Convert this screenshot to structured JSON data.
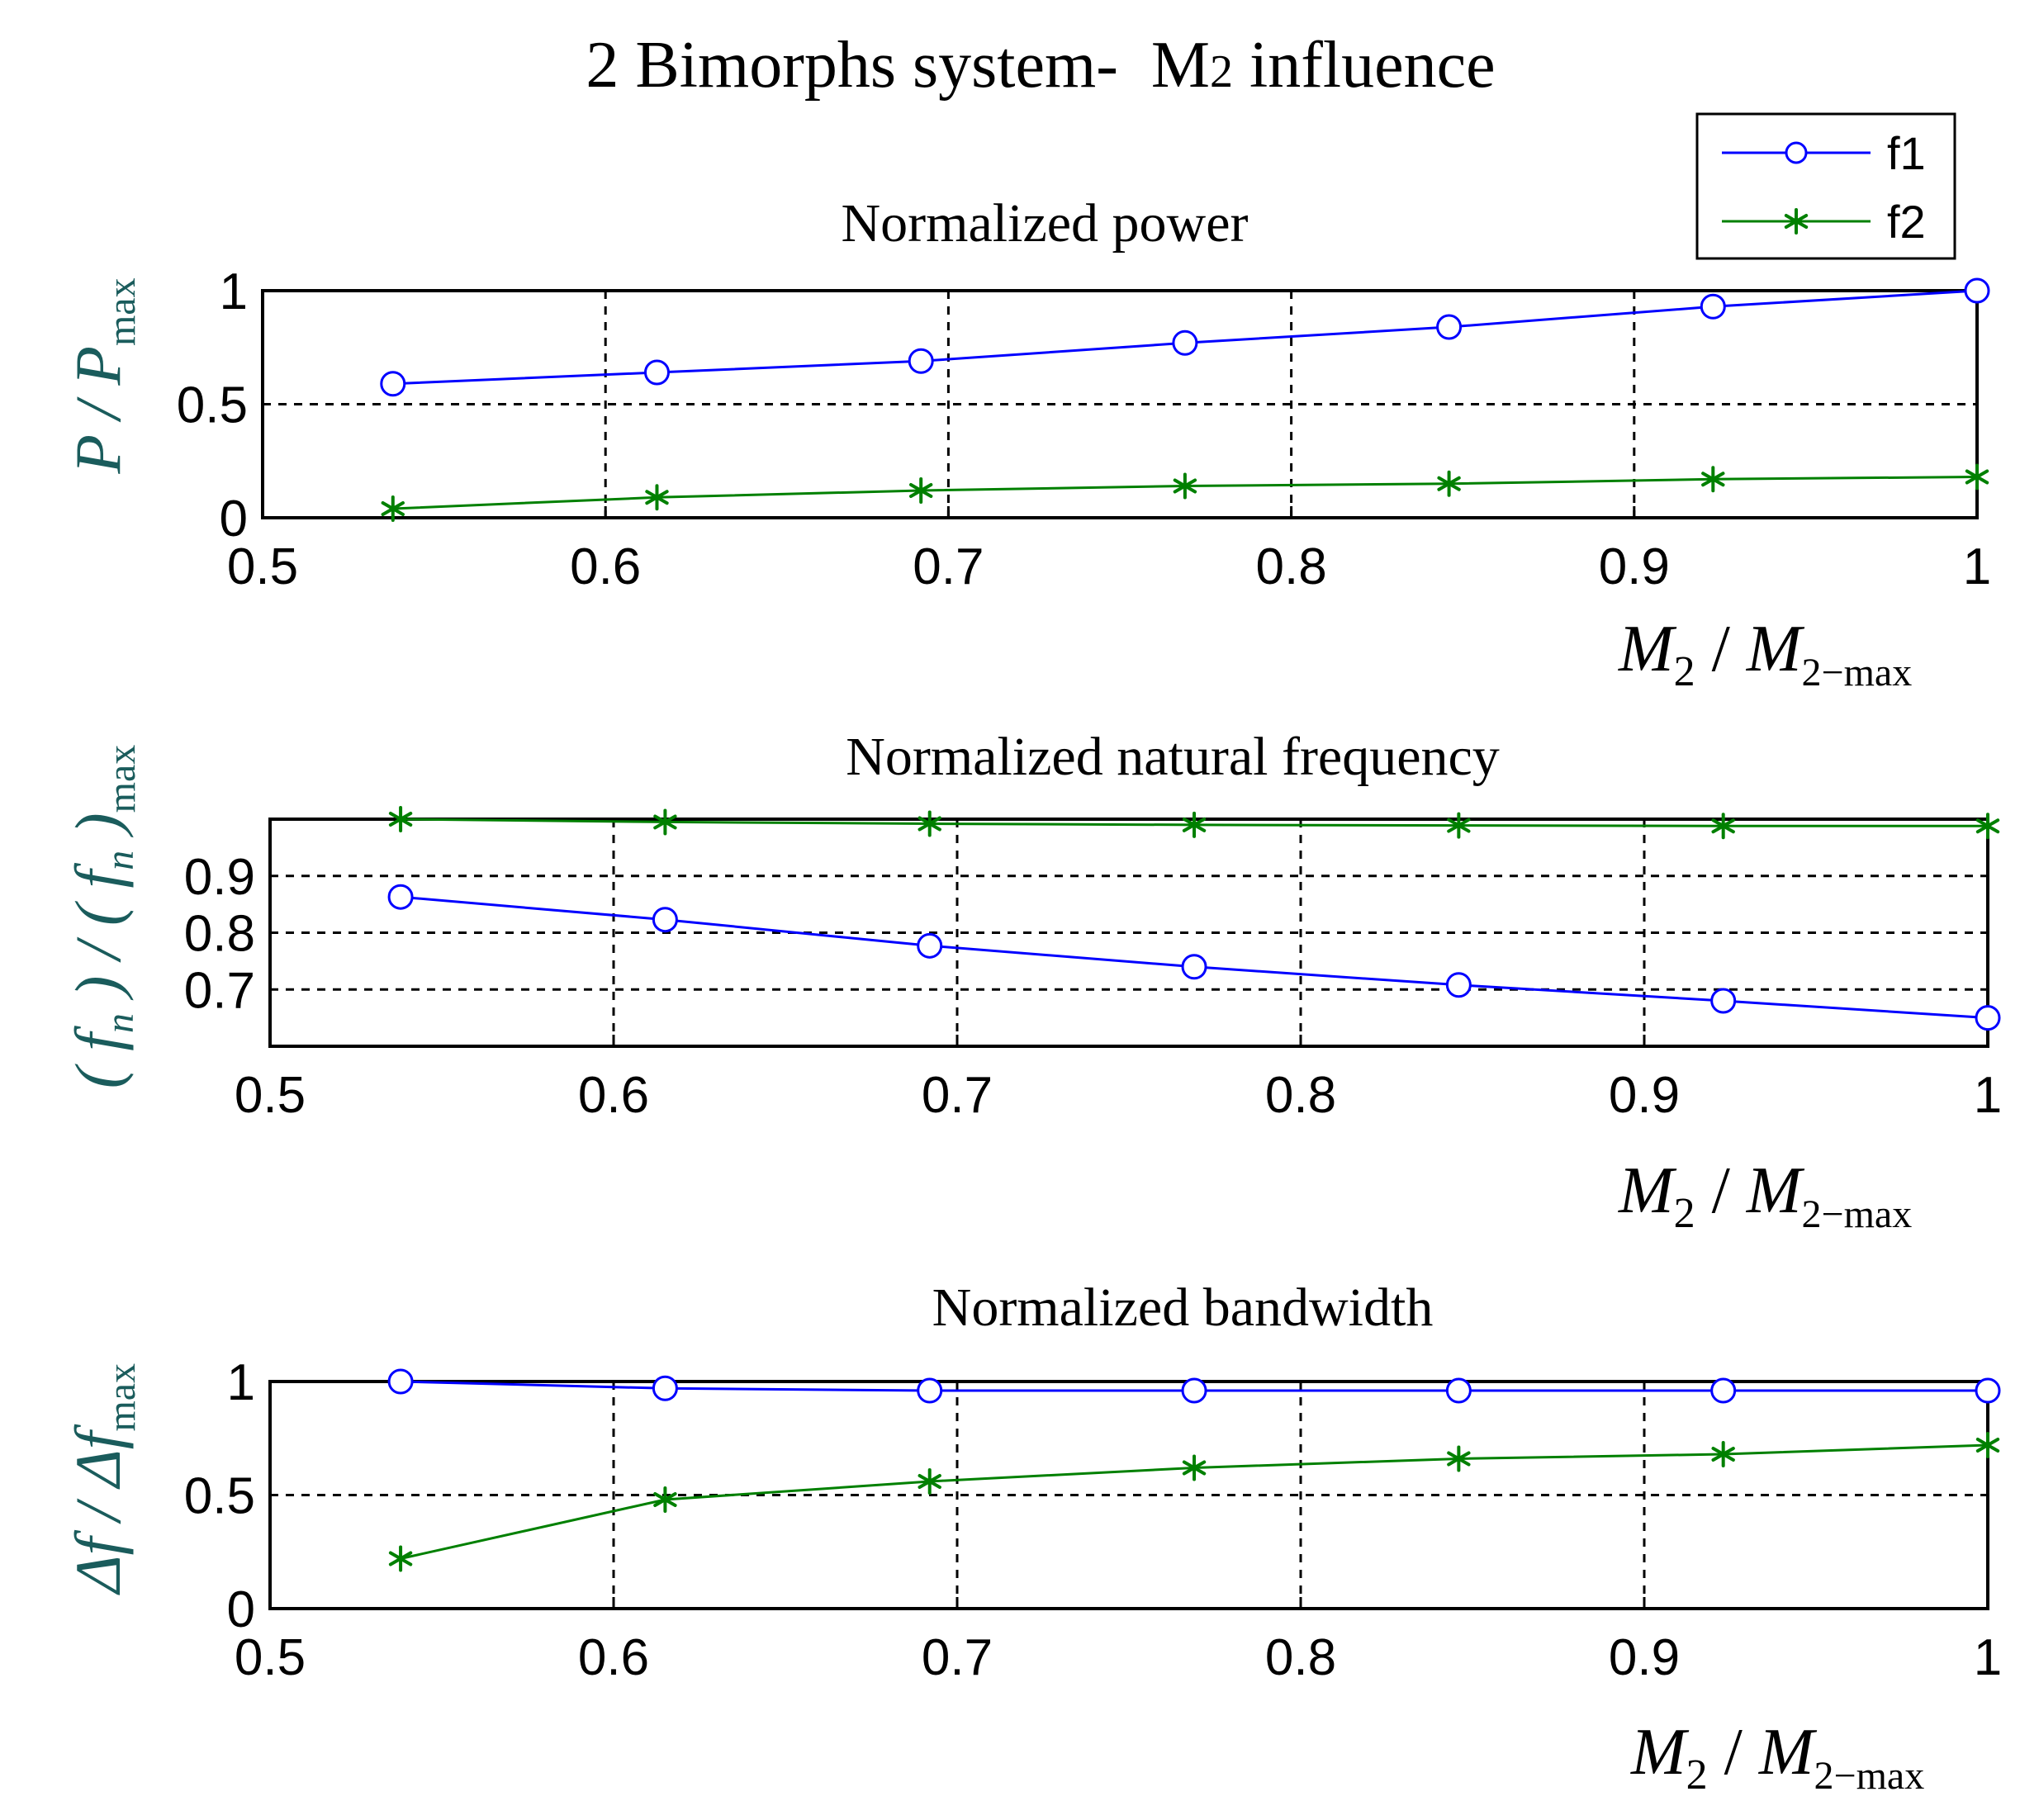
{
  "figure": {
    "title_main": "2 Bimorphs system-",
    "title_tail": "M",
    "title_sub": "2",
    "title_end": " influence"
  },
  "legend": {
    "items": [
      {
        "label": "f1",
        "color": "#0000ff",
        "marker": "circle"
      },
      {
        "label": "f2",
        "color": "#008000",
        "marker": "asterisk"
      }
    ]
  },
  "colors": {
    "f1": "#0000ff",
    "f2": "#008000",
    "ylabel": "#1a5c5c",
    "axis": "#000000"
  },
  "chart_data": [
    {
      "type": "line",
      "title": "Normalized power",
      "xlabel": "M2 / M2-max",
      "ylabel": "P / Pmax",
      "xlim": [
        0.5,
        1
      ],
      "ylim": [
        0,
        1
      ],
      "xticks": [
        0.5,
        0.6,
        0.7,
        0.8,
        0.9,
        1
      ],
      "yticks": [
        0,
        0.5,
        1
      ],
      "ytick_labels": [
        "0",
        "0.5",
        "1"
      ],
      "grid": true,
      "x": [
        0.538,
        0.615,
        0.692,
        0.769,
        0.846,
        0.923,
        1.0
      ],
      "series": [
        {
          "name": "f1",
          "values": [
            0.59,
            0.64,
            0.69,
            0.77,
            0.84,
            0.93,
            1.0
          ]
        },
        {
          "name": "f2",
          "values": [
            0.04,
            0.09,
            0.12,
            0.14,
            0.15,
            0.17,
            0.18
          ]
        }
      ]
    },
    {
      "type": "line",
      "title": "Normalized natural frequency",
      "xlabel": "M2 / M2-max",
      "ylabel": "(fn)/(fn)max",
      "xlim": [
        0.5,
        1
      ],
      "ylim": [
        0.6,
        1.0
      ],
      "xticks": [
        0.5,
        0.6,
        0.7,
        0.8,
        0.9,
        1
      ],
      "yticks": [
        0.7,
        0.8,
        0.9
      ],
      "ytick_labels": [
        "0.7",
        "0.8",
        "0.9"
      ],
      "grid": true,
      "x": [
        0.538,
        0.615,
        0.692,
        0.769,
        0.846,
        0.923,
        1.0
      ],
      "series": [
        {
          "name": "f1",
          "values": [
            0.863,
            0.823,
            0.777,
            0.74,
            0.708,
            0.68,
            0.65
          ]
        },
        {
          "name": "f2",
          "values": [
            1.0,
            0.995,
            0.992,
            0.99,
            0.989,
            0.988,
            0.988
          ]
        }
      ]
    },
    {
      "type": "line",
      "title": "Normalized bandwidth",
      "xlabel": "M2 / M2-max",
      "ylabel": "Δf / Δfmax",
      "xlim": [
        0.5,
        1
      ],
      "ylim": [
        0,
        1
      ],
      "xticks": [
        0.5,
        0.6,
        0.7,
        0.8,
        0.9,
        1
      ],
      "yticks": [
        0,
        0.5,
        1
      ],
      "ytick_labels": [
        "0",
        "0.5",
        "1"
      ],
      "grid": true,
      "x": [
        0.538,
        0.615,
        0.692,
        0.769,
        0.846,
        0.923,
        1.0
      ],
      "series": [
        {
          "name": "f1",
          "values": [
            1.0,
            0.97,
            0.96,
            0.96,
            0.96,
            0.96,
            0.96
          ]
        },
        {
          "name": "f2",
          "values": [
            0.22,
            0.48,
            0.56,
            0.62,
            0.66,
            0.68,
            0.72
          ]
        }
      ]
    }
  ]
}
